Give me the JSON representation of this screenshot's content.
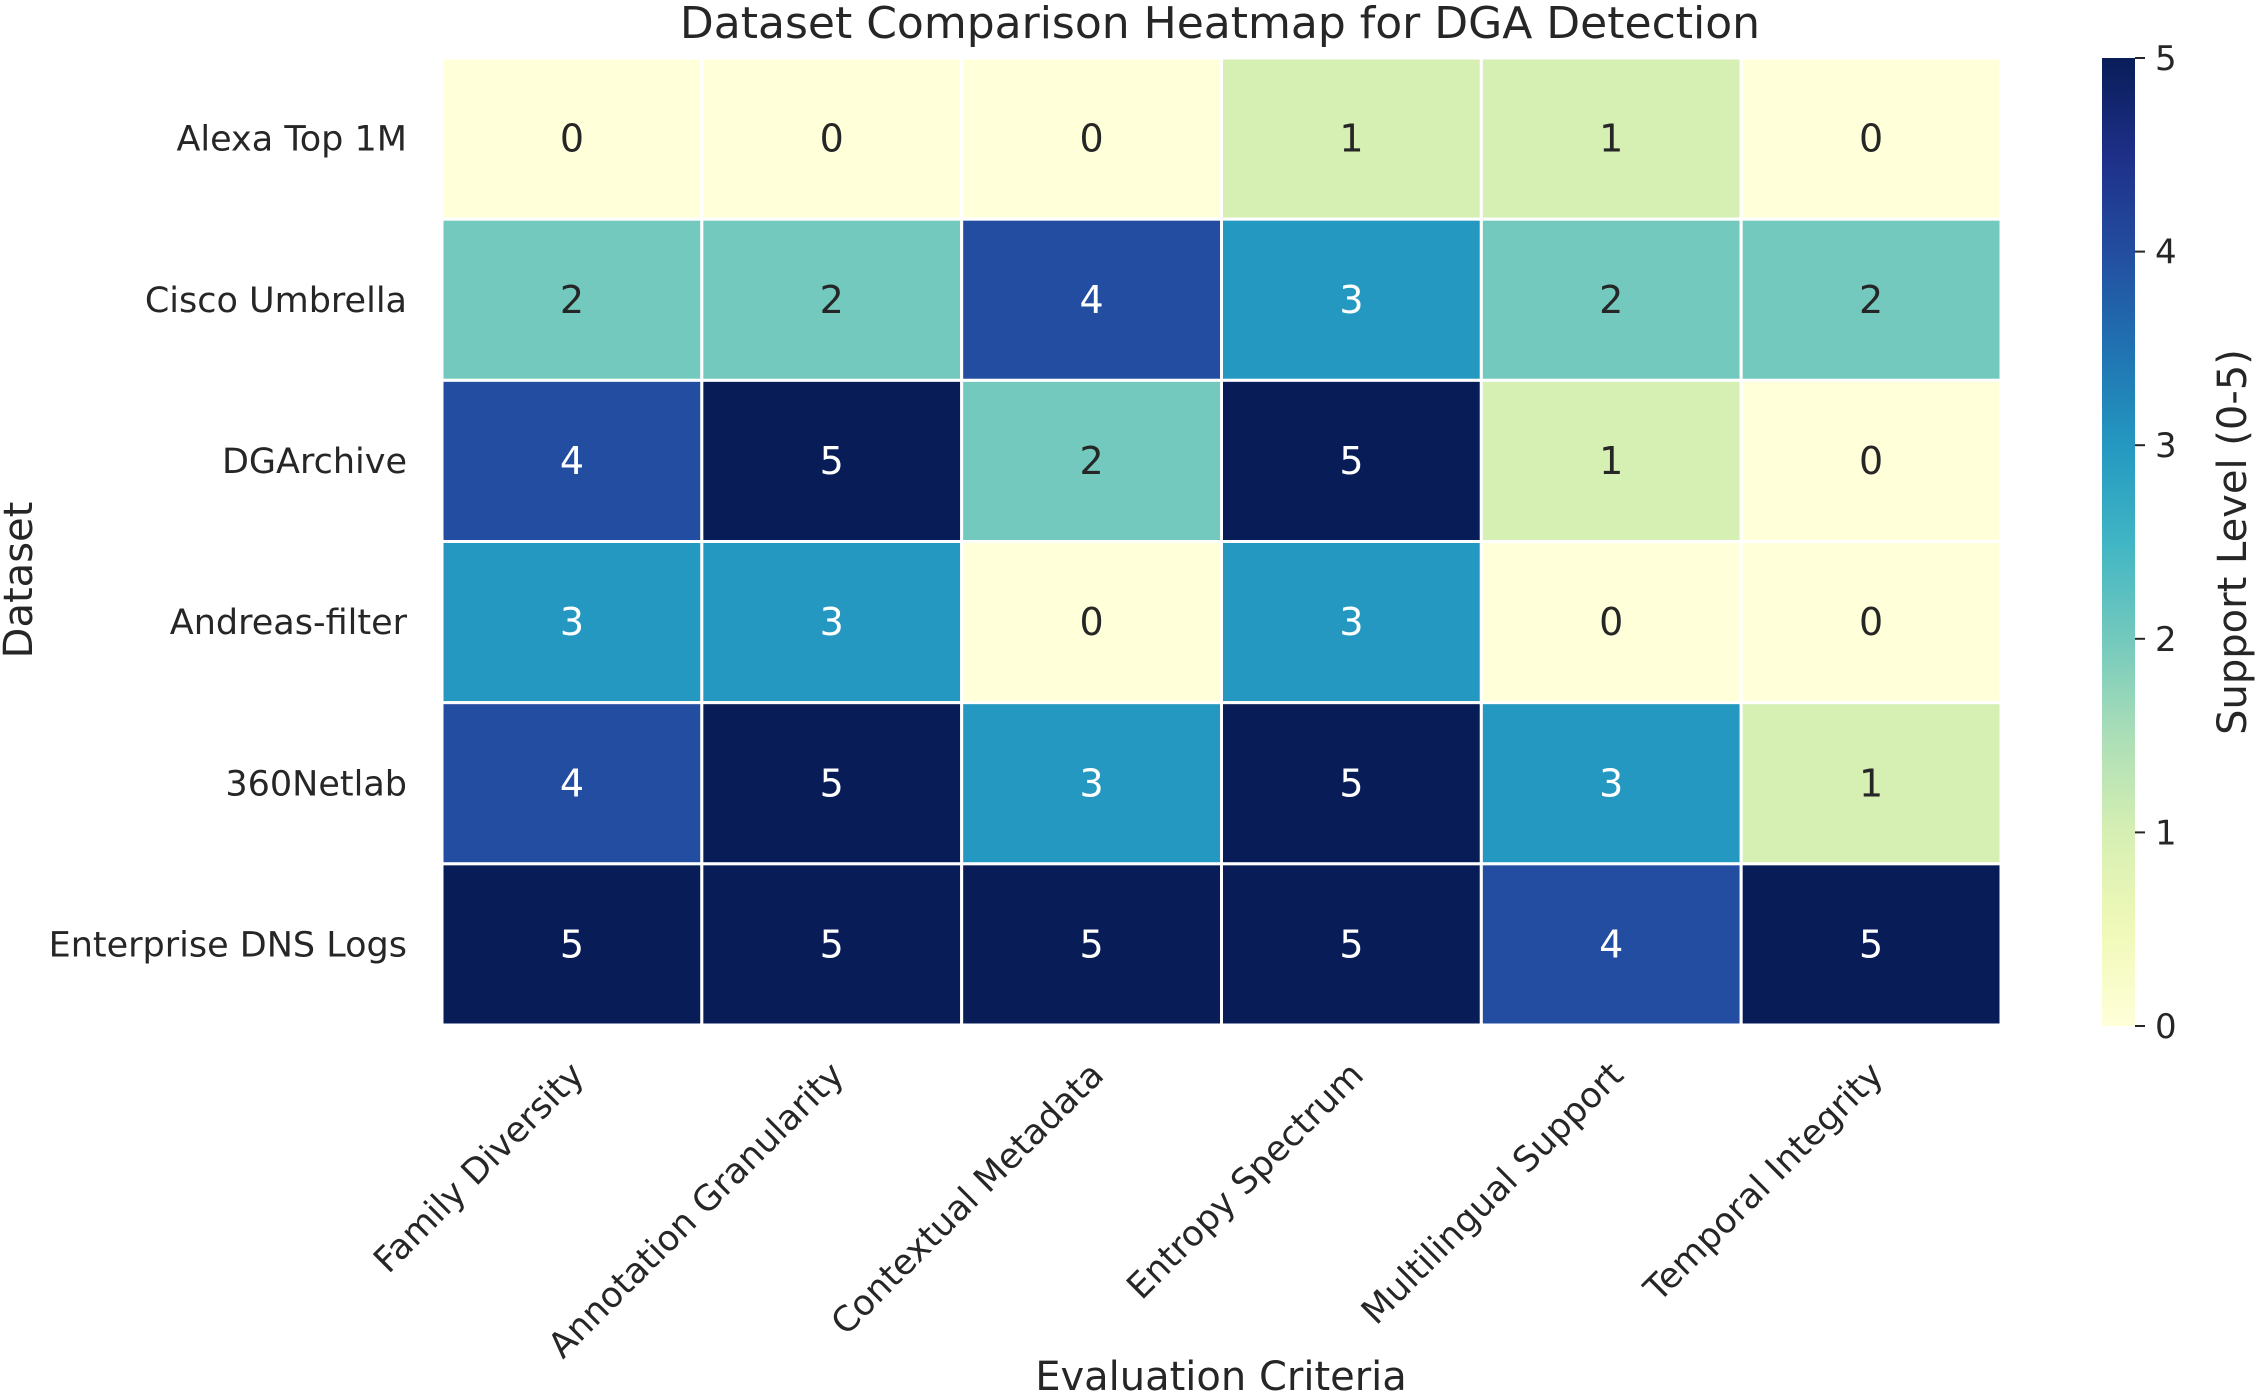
{
  "chart_data": {
    "type": "heatmap",
    "title": "Dataset Comparison Heatmap for DGA Detection",
    "xlabel": "Evaluation Criteria",
    "ylabel": "Dataset",
    "x_categories": [
      "Family Diversity",
      "Annotation Granularity",
      "Contextual Metadata",
      "Entropy Spectrum",
      "Multilingual Support",
      "Temporal Integrity"
    ],
    "y_categories": [
      "Alexa Top 1M",
      "Cisco Umbrella",
      "DGArchive",
      "Andreas-filter",
      "360Netlab",
      "Enterprise DNS Logs"
    ],
    "values": [
      [
        0,
        0,
        0,
        1,
        1,
        0
      ],
      [
        2,
        2,
        4,
        3,
        2,
        2
      ],
      [
        4,
        5,
        2,
        5,
        1,
        0
      ],
      [
        3,
        3,
        0,
        3,
        0,
        0
      ],
      [
        4,
        5,
        3,
        5,
        3,
        1
      ],
      [
        5,
        5,
        5,
        5,
        4,
        5
      ]
    ],
    "colorbar": {
      "label": "Support Level (0-5)",
      "range": [
        0,
        5
      ],
      "ticks": [
        "0",
        "1",
        "2",
        "3",
        "4",
        "5"
      ],
      "colormap": "YlGnBu"
    },
    "annotations": true,
    "colors": {
      "0": "#ffffd9",
      "1": "#d6efb3",
      "2": "#73c9bd",
      "3": "#2498c1",
      "4": "#234da0",
      "5": "#081d58"
    }
  }
}
